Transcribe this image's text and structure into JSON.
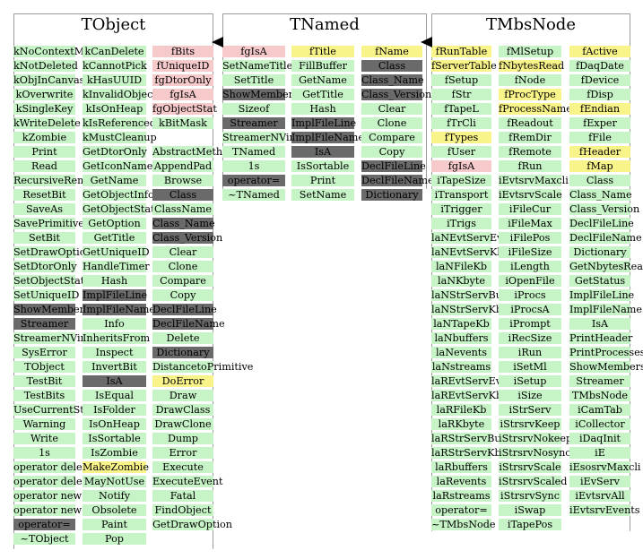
{
  "boxes": [
    {
      "name": "tobject",
      "title": "TObject",
      "columns": [
        [
          [
            "kNoContextMenu",
            "g"
          ],
          [
            "kNotDeleted",
            "g"
          ],
          [
            "kObjInCanvas",
            "g"
          ],
          [
            "kOverwrite",
            "g"
          ],
          [
            "kSingleKey",
            "g"
          ],
          [
            "kWriteDelete",
            "g"
          ],
          [
            "kZombie",
            "g"
          ],
          [
            "Print",
            "g"
          ],
          [
            "Read",
            "g"
          ],
          [
            "RecursiveRemove",
            "g"
          ],
          [
            "ResetBit",
            "g"
          ],
          [
            "SaveAs",
            "g"
          ],
          [
            "SavePrimitive",
            "g"
          ],
          [
            "SetBit",
            "g"
          ],
          [
            "SetDrawOption",
            "g"
          ],
          [
            "SetDtorOnly",
            "g"
          ],
          [
            "SetObjectStat",
            "g"
          ],
          [
            "SetUniqueID",
            "g"
          ],
          [
            "ShowMembers",
            "d"
          ],
          [
            "Streamer",
            "d"
          ],
          [
            "StreamerNVirtual",
            "g"
          ],
          [
            "SysError",
            "g"
          ],
          [
            "TObject",
            "g"
          ],
          [
            "TestBit",
            "g"
          ],
          [
            "TestBits",
            "g"
          ],
          [
            "UseCurrentStyle",
            "g"
          ],
          [
            "Warning",
            "g"
          ],
          [
            "Write",
            "g"
          ],
          [
            "1s",
            "g"
          ],
          [
            "operator delete",
            "g"
          ],
          [
            "operator delete[]",
            "g"
          ],
          [
            "operator new",
            "g"
          ],
          [
            "operator new[]",
            "g"
          ],
          [
            "operator=",
            "d"
          ],
          [
            "~TObject",
            "g"
          ]
        ],
        [
          [
            "kCanDelete",
            "g"
          ],
          [
            "kCannotPick",
            "g"
          ],
          [
            "kHasUUID",
            "g"
          ],
          [
            "kInvalidObject",
            "g"
          ],
          [
            "kIsOnHeap",
            "g"
          ],
          [
            "kIsReferenced",
            "g"
          ],
          [
            "kMustCleanup",
            "g"
          ],
          [
            "GetDtorOnly",
            "g"
          ],
          [
            "GetIconName",
            "g"
          ],
          [
            "GetName",
            "g"
          ],
          [
            "GetObjectInfo",
            "g"
          ],
          [
            "GetObjectStat",
            "g"
          ],
          [
            "GetOption",
            "g"
          ],
          [
            "GetTitle",
            "g"
          ],
          [
            "GetUniqueID",
            "g"
          ],
          [
            "HandleTimer",
            "g"
          ],
          [
            "Hash",
            "g"
          ],
          [
            "ImplFileLine",
            "d"
          ],
          [
            "ImplFileName",
            "d"
          ],
          [
            "Info",
            "g"
          ],
          [
            "InheritsFrom",
            "g"
          ],
          [
            "Inspect",
            "g"
          ],
          [
            "InvertBit",
            "g"
          ],
          [
            "IsA",
            "d"
          ],
          [
            "IsEqual",
            "g"
          ],
          [
            "IsFolder",
            "g"
          ],
          [
            "IsOnHeap",
            "g"
          ],
          [
            "IsSortable",
            "g"
          ],
          [
            "IsZombie",
            "g"
          ],
          [
            "MakeZombie",
            "y"
          ],
          [
            "MayNotUse",
            "g"
          ],
          [
            "Notify",
            "g"
          ],
          [
            "Obsolete",
            "g"
          ],
          [
            "Paint",
            "g"
          ],
          [
            "Pop",
            "g"
          ]
        ],
        [
          [
            "fBits",
            "p"
          ],
          [
            "fUniqueID",
            "p"
          ],
          [
            "fgDtorOnly",
            "p"
          ],
          [
            "fgIsA",
            "p"
          ],
          [
            "fgObjectStat",
            "p"
          ],
          [
            "kBitMask",
            "g"
          ],
          [
            "",
            "n"
          ],
          [
            "AbstractMethod",
            "g"
          ],
          [
            "AppendPad",
            "g"
          ],
          [
            "Browse",
            "g"
          ],
          [
            "Class",
            "d"
          ],
          [
            "ClassName",
            "g"
          ],
          [
            "Class_Name",
            "d"
          ],
          [
            "Class_Version",
            "d"
          ],
          [
            "Clear",
            "g"
          ],
          [
            "Clone",
            "g"
          ],
          [
            "Compare",
            "g"
          ],
          [
            "Copy",
            "g"
          ],
          [
            "DeclFileLine",
            "d"
          ],
          [
            "DeclFileName",
            "d"
          ],
          [
            "Delete",
            "g"
          ],
          [
            "Dictionary",
            "d"
          ],
          [
            "DistancetoPrimitive",
            "g"
          ],
          [
            "DoError",
            "y"
          ],
          [
            "Draw",
            "g"
          ],
          [
            "DrawClass",
            "g"
          ],
          [
            "DrawClone",
            "g"
          ],
          [
            "Dump",
            "g"
          ],
          [
            "Error",
            "g"
          ],
          [
            "Execute",
            "g"
          ],
          [
            "ExecuteEvent",
            "g"
          ],
          [
            "Fatal",
            "g"
          ],
          [
            "FindObject",
            "g"
          ],
          [
            "GetDrawOption",
            "g"
          ]
        ]
      ]
    },
    {
      "name": "tnamed",
      "title": "TNamed",
      "columns": [
        [
          [
            "fgIsA",
            "p"
          ],
          [
            "SetNameTitle",
            "g"
          ],
          [
            "SetTitle",
            "g"
          ],
          [
            "ShowMembers",
            "d"
          ],
          [
            "Sizeof",
            "g"
          ],
          [
            "Streamer",
            "d"
          ],
          [
            "StreamerNVirtual",
            "g"
          ],
          [
            "TNamed",
            "g"
          ],
          [
            "1s",
            "g"
          ],
          [
            "operator=",
            "d"
          ],
          [
            "~TNamed",
            "g"
          ]
        ],
        [
          [
            "fTitle",
            "y"
          ],
          [
            "FillBuffer",
            "g"
          ],
          [
            "GetName",
            "g"
          ],
          [
            "GetTitle",
            "g"
          ],
          [
            "Hash",
            "g"
          ],
          [
            "ImplFileLine",
            "d"
          ],
          [
            "ImplFileName",
            "d"
          ],
          [
            "IsA",
            "d"
          ],
          [
            "IsSortable",
            "g"
          ],
          [
            "Print",
            "g"
          ],
          [
            "SetName",
            "g"
          ]
        ],
        [
          [
            "fName",
            "y"
          ],
          [
            "Class",
            "d"
          ],
          [
            "Class_Name",
            "d"
          ],
          [
            "Class_Version",
            "d"
          ],
          [
            "Clear",
            "g"
          ],
          [
            "Clone",
            "g"
          ],
          [
            "Compare",
            "g"
          ],
          [
            "Copy",
            "g"
          ],
          [
            "DeclFileLine",
            "d"
          ],
          [
            "DeclFileName",
            "d"
          ],
          [
            "Dictionary",
            "d"
          ]
        ]
      ]
    },
    {
      "name": "tmbsnode",
      "title": "TMbsNode",
      "columns": [
        [
          [
            "fRunTable",
            "y"
          ],
          [
            "fServerTable",
            "y"
          ],
          [
            "fSetup",
            "g"
          ],
          [
            "fStr",
            "g"
          ],
          [
            "fTapeL",
            "g"
          ],
          [
            "fTrCli",
            "g"
          ],
          [
            "fTypes",
            "y"
          ],
          [
            "fUser",
            "g"
          ],
          [
            "fgIsA",
            "p"
          ],
          [
            "iTapeSize",
            "g"
          ],
          [
            "iTransport",
            "g"
          ],
          [
            "iTrigger",
            "g"
          ],
          [
            "iTrigs",
            "g"
          ],
          [
            "laNEvtServEv",
            "g"
          ],
          [
            "laNEvtServKb",
            "g"
          ],
          [
            "laNFileKb",
            "g"
          ],
          [
            "laNKbyte",
            "g"
          ],
          [
            "laNStrServBuf",
            "g"
          ],
          [
            "laNStrServKb",
            "g"
          ],
          [
            "laNTapeKb",
            "g"
          ],
          [
            "laNbuffers",
            "g"
          ],
          [
            "laNevents",
            "g"
          ],
          [
            "laNstreams",
            "g"
          ],
          [
            "laREvtServEv",
            "g"
          ],
          [
            "laREvtServKb",
            "g"
          ],
          [
            "laRFileKb",
            "g"
          ],
          [
            "laRKbyte",
            "g"
          ],
          [
            "laRStrServBuf",
            "g"
          ],
          [
            "laRStrServKb",
            "g"
          ],
          [
            "laRbuffers",
            "g"
          ],
          [
            "laRevents",
            "g"
          ],
          [
            "laRstreams",
            "g"
          ],
          [
            "operator=",
            "g"
          ],
          [
            "~TMbsNode",
            "g"
          ]
        ],
        [
          [
            "fMlSetup",
            "g"
          ],
          [
            "fNbytesRead",
            "y"
          ],
          [
            "fNode",
            "g"
          ],
          [
            "fProcType",
            "y"
          ],
          [
            "fProcessNames",
            "y"
          ],
          [
            "fReadout",
            "g"
          ],
          [
            "fRemDir",
            "g"
          ],
          [
            "fRemote",
            "g"
          ],
          [
            "fRun",
            "g"
          ],
          [
            "iEvtsrvMaxcli",
            "g"
          ],
          [
            "iEvtsrvScale",
            "g"
          ],
          [
            "iFileCur",
            "g"
          ],
          [
            "iFileMax",
            "g"
          ],
          [
            "iFilePos",
            "g"
          ],
          [
            "iFileSize",
            "g"
          ],
          [
            "iLength",
            "g"
          ],
          [
            "iOpenFile",
            "g"
          ],
          [
            "iProcs",
            "g"
          ],
          [
            "iProcsA",
            "g"
          ],
          [
            "iPrompt",
            "g"
          ],
          [
            "iRecSize",
            "g"
          ],
          [
            "iRun",
            "g"
          ],
          [
            "iSetMl",
            "g"
          ],
          [
            "iSetup",
            "g"
          ],
          [
            "iSize",
            "g"
          ],
          [
            "iStrServ",
            "g"
          ],
          [
            "iStrsrvKeep",
            "g"
          ],
          [
            "iStrsrvNokeep",
            "g"
          ],
          [
            "iStrsrvNosync",
            "g"
          ],
          [
            "iStrsrvScale",
            "g"
          ],
          [
            "iStrsrvScaled",
            "g"
          ],
          [
            "iStrsrvSync",
            "g"
          ],
          [
            "iSwap",
            "g"
          ],
          [
            "iTapePos",
            "g"
          ]
        ],
        [
          [
            "fActive",
            "y"
          ],
          [
            "fDaqDate",
            "g"
          ],
          [
            "fDevice",
            "g"
          ],
          [
            "fDisp",
            "g"
          ],
          [
            "fEndian",
            "y"
          ],
          [
            "fExper",
            "g"
          ],
          [
            "fFile",
            "g"
          ],
          [
            "fHeader",
            "y"
          ],
          [
            "fMap",
            "y"
          ],
          [
            "Class",
            "g"
          ],
          [
            "Class_Name",
            "g"
          ],
          [
            "Class_Version",
            "g"
          ],
          [
            "DeclFileLine",
            "g"
          ],
          [
            "DeclFileName",
            "g"
          ],
          [
            "Dictionary",
            "g"
          ],
          [
            "GetNbytesRead",
            "g"
          ],
          [
            "GetStatus",
            "g"
          ],
          [
            "ImplFileLine",
            "g"
          ],
          [
            "ImplFileName",
            "g"
          ],
          [
            "IsA",
            "g"
          ],
          [
            "PrintHeader",
            "g"
          ],
          [
            "PrintProcesses",
            "g"
          ],
          [
            "ShowMembers",
            "g"
          ],
          [
            "Streamer",
            "g"
          ],
          [
            "TMbsNode",
            "g"
          ],
          [
            "iCamTab",
            "g"
          ],
          [
            "iCollector",
            "g"
          ],
          [
            "iDaqInit",
            "g"
          ],
          [
            "iE",
            "g"
          ],
          [
            "iEsosrvMaxcli",
            "g"
          ],
          [
            "iEvServ",
            "g"
          ],
          [
            "iEvtsrvAll",
            "g"
          ],
          [
            "iEvtsrvEvents",
            "g"
          ]
        ]
      ]
    }
  ]
}
